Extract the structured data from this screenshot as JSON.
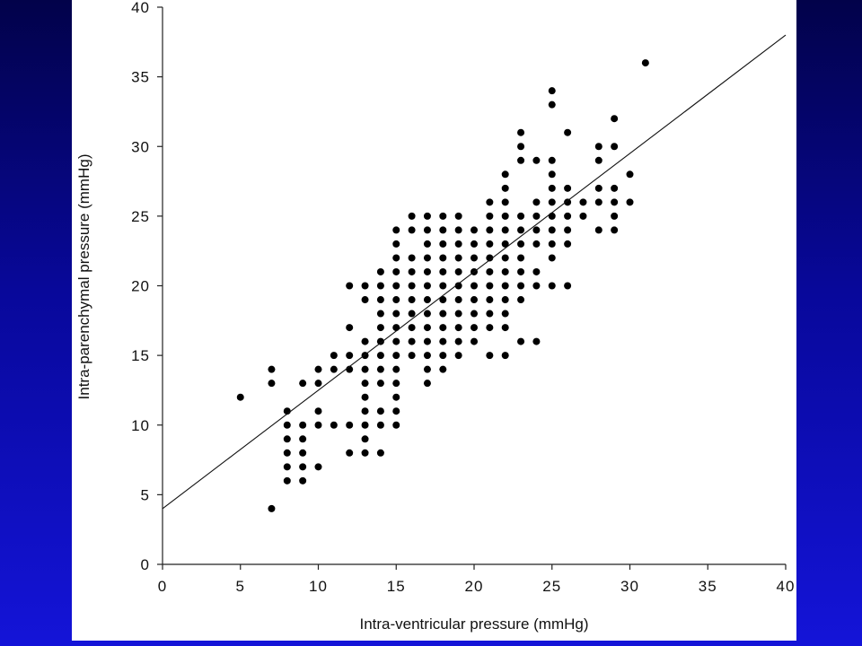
{
  "chart_data": {
    "type": "scatter",
    "title": "",
    "xlabel": "Intra-ventricular pressure (mmHg)",
    "ylabel": "Intra-parenchymal pressure (mmHg)",
    "xlim": [
      0,
      40
    ],
    "ylim": [
      0,
      40
    ],
    "xticks": [
      "0",
      "5",
      "10",
      "15",
      "20",
      "25",
      "30",
      "35",
      "40"
    ],
    "yticks": [
      "0",
      "5",
      "10",
      "15",
      "20",
      "25",
      "30",
      "35",
      "40"
    ],
    "grid": false,
    "legend": "none",
    "regression_line": {
      "x": [
        0,
        40
      ],
      "y": [
        4,
        38
      ]
    },
    "points": [
      [
        5,
        12
      ],
      [
        7,
        4
      ],
      [
        7,
        13
      ],
      [
        7,
        14
      ],
      [
        8,
        6
      ],
      [
        8,
        7
      ],
      [
        8,
        8
      ],
      [
        8,
        9
      ],
      [
        8,
        10
      ],
      [
        8,
        11
      ],
      [
        9,
        6
      ],
      [
        9,
        7
      ],
      [
        9,
        8
      ],
      [
        9,
        9
      ],
      [
        9,
        10
      ],
      [
        9,
        13
      ],
      [
        10,
        7
      ],
      [
        10,
        10
      ],
      [
        10,
        11
      ],
      [
        10,
        13
      ],
      [
        10,
        14
      ],
      [
        11,
        10
      ],
      [
        11,
        14
      ],
      [
        11,
        15
      ],
      [
        12,
        8
      ],
      [
        12,
        10
      ],
      [
        12,
        14
      ],
      [
        12,
        15
      ],
      [
        12,
        17
      ],
      [
        12,
        20
      ],
      [
        13,
        8
      ],
      [
        13,
        9
      ],
      [
        13,
        10
      ],
      [
        13,
        11
      ],
      [
        13,
        12
      ],
      [
        13,
        13
      ],
      [
        13,
        14
      ],
      [
        13,
        15
      ],
      [
        13,
        16
      ],
      [
        13,
        19
      ],
      [
        13,
        20
      ],
      [
        14,
        8
      ],
      [
        14,
        10
      ],
      [
        14,
        11
      ],
      [
        14,
        13
      ],
      [
        14,
        14
      ],
      [
        14,
        15
      ],
      [
        14,
        16
      ],
      [
        14,
        17
      ],
      [
        14,
        18
      ],
      [
        14,
        19
      ],
      [
        14,
        20
      ],
      [
        14,
        21
      ],
      [
        15,
        10
      ],
      [
        15,
        11
      ],
      [
        15,
        12
      ],
      [
        15,
        13
      ],
      [
        15,
        14
      ],
      [
        15,
        15
      ],
      [
        15,
        16
      ],
      [
        15,
        17
      ],
      [
        15,
        18
      ],
      [
        15,
        19
      ],
      [
        15,
        20
      ],
      [
        15,
        21
      ],
      [
        15,
        22
      ],
      [
        15,
        23
      ],
      [
        15,
        24
      ],
      [
        16,
        15
      ],
      [
        16,
        16
      ],
      [
        16,
        17
      ],
      [
        16,
        18
      ],
      [
        16,
        19
      ],
      [
        16,
        20
      ],
      [
        16,
        21
      ],
      [
        16,
        22
      ],
      [
        16,
        24
      ],
      [
        16,
        25
      ],
      [
        17,
        13
      ],
      [
        17,
        14
      ],
      [
        17,
        15
      ],
      [
        17,
        16
      ],
      [
        17,
        17
      ],
      [
        17,
        18
      ],
      [
        17,
        19
      ],
      [
        17,
        20
      ],
      [
        17,
        21
      ],
      [
        17,
        22
      ],
      [
        17,
        23
      ],
      [
        17,
        24
      ],
      [
        17,
        25
      ],
      [
        18,
        14
      ],
      [
        18,
        15
      ],
      [
        18,
        16
      ],
      [
        18,
        17
      ],
      [
        18,
        18
      ],
      [
        18,
        19
      ],
      [
        18,
        20
      ],
      [
        18,
        21
      ],
      [
        18,
        22
      ],
      [
        18,
        23
      ],
      [
        18,
        24
      ],
      [
        18,
        25
      ],
      [
        19,
        15
      ],
      [
        19,
        16
      ],
      [
        19,
        17
      ],
      [
        19,
        18
      ],
      [
        19,
        19
      ],
      [
        19,
        20
      ],
      [
        19,
        21
      ],
      [
        19,
        22
      ],
      [
        19,
        23
      ],
      [
        19,
        24
      ],
      [
        19,
        25
      ],
      [
        20,
        16
      ],
      [
        20,
        17
      ],
      [
        20,
        18
      ],
      [
        20,
        19
      ],
      [
        20,
        20
      ],
      [
        20,
        21
      ],
      [
        20,
        22
      ],
      [
        20,
        23
      ],
      [
        20,
        24
      ],
      [
        21,
        15
      ],
      [
        21,
        17
      ],
      [
        21,
        18
      ],
      [
        21,
        19
      ],
      [
        21,
        20
      ],
      [
        21,
        21
      ],
      [
        21,
        22
      ],
      [
        21,
        23
      ],
      [
        21,
        24
      ],
      [
        21,
        25
      ],
      [
        21,
        26
      ],
      [
        22,
        15
      ],
      [
        22,
        17
      ],
      [
        22,
        18
      ],
      [
        22,
        19
      ],
      [
        22,
        20
      ],
      [
        22,
        21
      ],
      [
        22,
        22
      ],
      [
        22,
        23
      ],
      [
        22,
        24
      ],
      [
        22,
        25
      ],
      [
        22,
        26
      ],
      [
        22,
        27
      ],
      [
        22,
        28
      ],
      [
        23,
        16
      ],
      [
        23,
        19
      ],
      [
        23,
        20
      ],
      [
        23,
        21
      ],
      [
        23,
        22
      ],
      [
        23,
        23
      ],
      [
        23,
        24
      ],
      [
        23,
        25
      ],
      [
        23,
        29
      ],
      [
        23,
        30
      ],
      [
        23,
        31
      ],
      [
        24,
        16
      ],
      [
        24,
        20
      ],
      [
        24,
        21
      ],
      [
        24,
        23
      ],
      [
        24,
        24
      ],
      [
        24,
        25
      ],
      [
        24,
        26
      ],
      [
        24,
        29
      ],
      [
        25,
        20
      ],
      [
        25,
        22
      ],
      [
        25,
        23
      ],
      [
        25,
        24
      ],
      [
        25,
        25
      ],
      [
        25,
        26
      ],
      [
        25,
        27
      ],
      [
        25,
        28
      ],
      [
        25,
        29
      ],
      [
        25,
        33
      ],
      [
        25,
        34
      ],
      [
        26,
        20
      ],
      [
        26,
        23
      ],
      [
        26,
        24
      ],
      [
        26,
        25
      ],
      [
        26,
        26
      ],
      [
        26,
        27
      ],
      [
        26,
        31
      ],
      [
        27,
        25
      ],
      [
        27,
        26
      ],
      [
        28,
        24
      ],
      [
        28,
        26
      ],
      [
        28,
        27
      ],
      [
        28,
        29
      ],
      [
        28,
        30
      ],
      [
        29,
        24
      ],
      [
        29,
        25
      ],
      [
        29,
        26
      ],
      [
        29,
        27
      ],
      [
        29,
        30
      ],
      [
        29,
        32
      ],
      [
        30,
        26
      ],
      [
        30,
        28
      ],
      [
        31,
        36
      ]
    ]
  }
}
